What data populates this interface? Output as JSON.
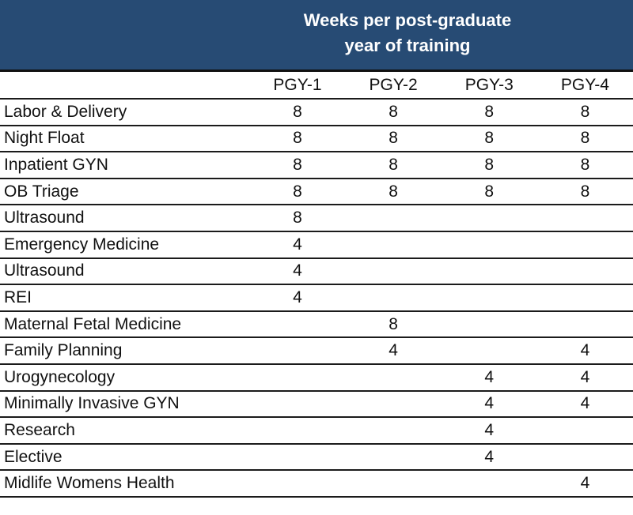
{
  "header": {
    "title_line1": "Weeks per post-graduate",
    "title_line2": "year of training"
  },
  "table": {
    "columns": [
      "PGY-1",
      "PGY-2",
      "PGY-3",
      "PGY-4"
    ],
    "rows": [
      {
        "label": "Labor & Delivery",
        "values": [
          "8",
          "8",
          "8",
          "8"
        ]
      },
      {
        "label": "Night Float",
        "values": [
          "8",
          "8",
          "8",
          "8"
        ]
      },
      {
        "label": "Inpatient GYN",
        "values": [
          "8",
          "8",
          "8",
          "8"
        ]
      },
      {
        "label": "OB Triage",
        "values": [
          "8",
          "8",
          "8",
          "8"
        ]
      },
      {
        "label": "Ultrasound",
        "values": [
          "8",
          "",
          "",
          ""
        ]
      },
      {
        "label": "Emergency Medicine",
        "values": [
          "4",
          "",
          "",
          ""
        ]
      },
      {
        "label": "Ultrasound",
        "values": [
          "4",
          "",
          "",
          ""
        ]
      },
      {
        "label": "REI",
        "values": [
          "4",
          "",
          "",
          ""
        ]
      },
      {
        "label": "Maternal Fetal Medicine",
        "values": [
          "",
          "8",
          "",
          ""
        ]
      },
      {
        "label": "Family Planning",
        "values": [
          "",
          "4",
          "",
          "4"
        ]
      },
      {
        "label": "Urogynecology",
        "values": [
          "",
          "",
          "4",
          "4"
        ]
      },
      {
        "label": "Minimally Invasive GYN",
        "values": [
          "",
          "",
          "4",
          "4"
        ]
      },
      {
        "label": "Research",
        "values": [
          "",
          "",
          "4",
          ""
        ]
      },
      {
        "label": "Elective",
        "values": [
          "",
          "",
          "4",
          ""
        ]
      },
      {
        "label": "Midlife Womens Health",
        "values": [
          "",
          "",
          "",
          "4"
        ]
      }
    ]
  },
  "colors": {
    "banner": "#274b74",
    "banner_text": "#ffffff",
    "rule": "#1b1b1b"
  }
}
